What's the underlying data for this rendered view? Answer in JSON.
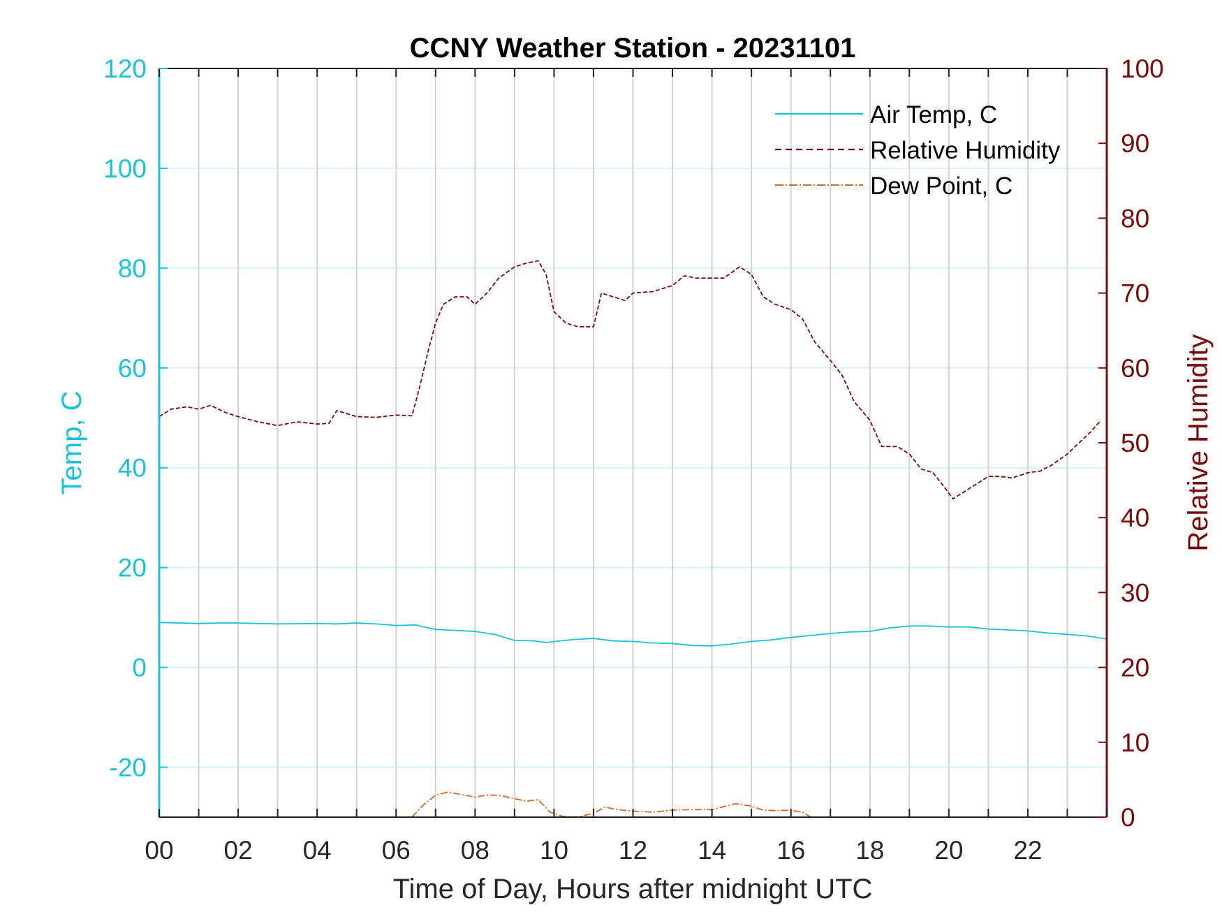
{
  "colors": {
    "temp": "#19c2d6",
    "rh": "#7a0a0a",
    "dew": "#d9661f",
    "grid_v": "#d3d3d3",
    "grid_h": "#d6f0f4",
    "text": "#262626",
    "frame": "#222222"
  },
  "chart_data": {
    "type": "line",
    "title": "CCNY Weather Station - 20231101",
    "xlabel": "Time of Day, Hours after midnight UTC",
    "ylabel_left": "Temp, C",
    "ylabel_right": "Relative Humidity",
    "xlim": [
      0,
      24
    ],
    "ylim_left": [
      -30,
      120
    ],
    "ylim_right": [
      0,
      100
    ],
    "x_ticks": [
      0,
      2,
      4,
      6,
      8,
      10,
      12,
      14,
      16,
      18,
      20,
      22
    ],
    "x_tick_labels": [
      "00",
      "02",
      "04",
      "06",
      "08",
      "10",
      "12",
      "14",
      "16",
      "18",
      "20",
      "22"
    ],
    "y_left_ticks": [
      -20,
      0,
      20,
      40,
      60,
      80,
      100,
      120
    ],
    "y_left_tick_labels": [
      "-20",
      "0",
      "20",
      "40",
      "60",
      "80",
      "100",
      "120"
    ],
    "y_right_ticks": [
      0,
      10,
      20,
      30,
      40,
      50,
      60,
      70,
      80,
      90,
      100
    ],
    "y_right_tick_labels": [
      "0",
      "10",
      "20",
      "30",
      "40",
      "50",
      "60",
      "70",
      "80",
      "90",
      "100"
    ],
    "grid": "vertical every hour, horizontal at left-axis ticks",
    "legend": {
      "position": "top-right",
      "entries": [
        "Air Temp, C",
        "Relative Humidity",
        "Dew Point, C"
      ]
    },
    "series": [
      {
        "name": "Air Temp, C",
        "axis": "left",
        "style": "solid",
        "x": [
          0,
          0.5,
          1,
          1.5,
          2,
          3,
          4,
          4.5,
          5,
          5.5,
          6,
          6.5,
          7,
          7.5,
          8,
          8.5,
          9,
          9.5,
          9.8,
          10.5,
          11,
          11.5,
          12,
          12.5,
          13,
          13.5,
          14,
          14.5,
          15,
          15.5,
          16,
          16.5,
          17,
          17.5,
          18,
          18.5,
          19,
          19.5,
          20,
          20.5,
          21,
          21.5,
          22,
          22.5,
          23,
          23.5,
          24
        ],
        "y": [
          9.0,
          8.9,
          8.8,
          8.9,
          8.9,
          8.7,
          8.8,
          8.7,
          8.9,
          8.7,
          8.4,
          8.5,
          7.6,
          7.4,
          7.2,
          6.6,
          5.4,
          5.3,
          5.0,
          5.6,
          5.8,
          5.3,
          5.2,
          4.9,
          4.8,
          4.4,
          4.3,
          4.7,
          5.2,
          5.5,
          6.0,
          6.4,
          6.8,
          7.1,
          7.2,
          7.9,
          8.3,
          8.3,
          8.1,
          8.1,
          7.7,
          7.5,
          7.3,
          6.9,
          6.6,
          6.3,
          5.7
        ]
      },
      {
        "name": "Relative Humidity",
        "axis": "right",
        "style": "dashed",
        "x": [
          0,
          0.3,
          0.7,
          1.0,
          1.3,
          1.7,
          2.0,
          2.5,
          3.0,
          3.5,
          4.0,
          4.3,
          4.5,
          5.0,
          5.5,
          6.0,
          6.4,
          6.6,
          6.8,
          7.0,
          7.2,
          7.5,
          7.8,
          8.0,
          8.3,
          8.6,
          9.0,
          9.3,
          9.6,
          9.8,
          10.0,
          10.3,
          10.6,
          11.0,
          11.2,
          11.5,
          11.8,
          12.0,
          12.5,
          13.0,
          13.3,
          13.6,
          14.0,
          14.3,
          14.7,
          15.0,
          15.3,
          15.6,
          16.0,
          16.3,
          16.6,
          17.0,
          17.3,
          17.6,
          18.0,
          18.3,
          18.7,
          19.0,
          19.3,
          19.6,
          19.9,
          20.1,
          20.4,
          20.7,
          21.0,
          21.3,
          21.6,
          22.0,
          22.3,
          22.6,
          23.0,
          23.3,
          23.6,
          23.85
        ],
        "y": [
          53.5,
          54.5,
          54.8,
          54.5,
          55.0,
          54.0,
          53.5,
          52.8,
          52.3,
          52.8,
          52.5,
          52.6,
          54.3,
          53.5,
          53.4,
          53.7,
          53.6,
          57.5,
          62.0,
          66.0,
          68.5,
          69.5,
          69.5,
          68.5,
          70.0,
          72.0,
          73.5,
          74.0,
          74.3,
          72.5,
          67.5,
          66.0,
          65.5,
          65.5,
          70.0,
          69.5,
          69.0,
          70.0,
          70.2,
          71.0,
          72.3,
          72.0,
          72.0,
          72.0,
          73.5,
          72.5,
          69.5,
          68.5,
          67.8,
          66.5,
          63.5,
          61.0,
          59.0,
          55.5,
          53.0,
          49.5,
          49.5,
          48.5,
          46.5,
          46.0,
          44.0,
          42.5,
          43.5,
          44.5,
          45.5,
          45.5,
          45.3,
          46.0,
          46.2,
          47.0,
          48.5,
          50.0,
          51.5,
          53.0
        ]
      },
      {
        "name": "Dew Point, C",
        "axis": "left",
        "style": "dashdot",
        "x": [
          6.4,
          6.7,
          7.0,
          7.3,
          7.6,
          8.0,
          8.3,
          8.6,
          9.0,
          9.3,
          9.6,
          9.9,
          10.2,
          10.6,
          11.0,
          11.3,
          11.6,
          12.0,
          12.5,
          13.0,
          13.5,
          14.0,
          14.3,
          14.6,
          15.0,
          15.3,
          15.6,
          16.0,
          16.3,
          16.5
        ],
        "y": [
          -30.0,
          -27.5,
          -25.6,
          -25.0,
          -25.4,
          -26.0,
          -25.6,
          -25.6,
          -26.3,
          -26.8,
          -26.5,
          -29.0,
          -29.8,
          -30.0,
          -29.2,
          -28.0,
          -28.5,
          -28.8,
          -29.0,
          -28.6,
          -28.5,
          -28.5,
          -27.9,
          -27.3,
          -27.8,
          -28.6,
          -28.7,
          -28.6,
          -29.0,
          -30.0
        ]
      }
    ]
  }
}
